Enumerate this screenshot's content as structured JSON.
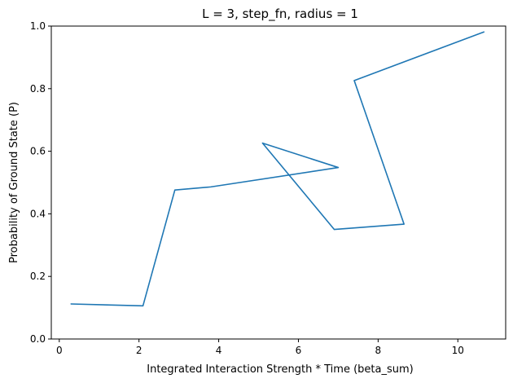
{
  "chart_data": {
    "type": "line",
    "title": "L = 3, step_fn, radius = 1",
    "xlabel": "Integrated Interaction Strength * Time (beta_sum)",
    "ylabel": "Probability of Ground State (P)",
    "xlim": [
      -0.2,
      11.2
    ],
    "ylim": [
      0.0,
      1.0
    ],
    "xticks": [
      0,
      2,
      4,
      6,
      8,
      10
    ],
    "yticks": [
      0.0,
      0.2,
      0.4,
      0.6,
      0.8,
      1.0
    ],
    "grid": false,
    "series": [
      {
        "color": "#1f77b4",
        "points": [
          [
            0.3,
            0.112
          ],
          [
            2.1,
            0.106
          ],
          [
            2.9,
            0.476
          ],
          [
            3.8,
            0.486
          ],
          [
            7.0,
            0.548
          ],
          [
            5.1,
            0.626
          ],
          [
            6.9,
            0.35
          ],
          [
            8.65,
            0.367
          ],
          [
            7.4,
            0.826
          ],
          [
            10.65,
            0.981
          ]
        ]
      }
    ]
  }
}
